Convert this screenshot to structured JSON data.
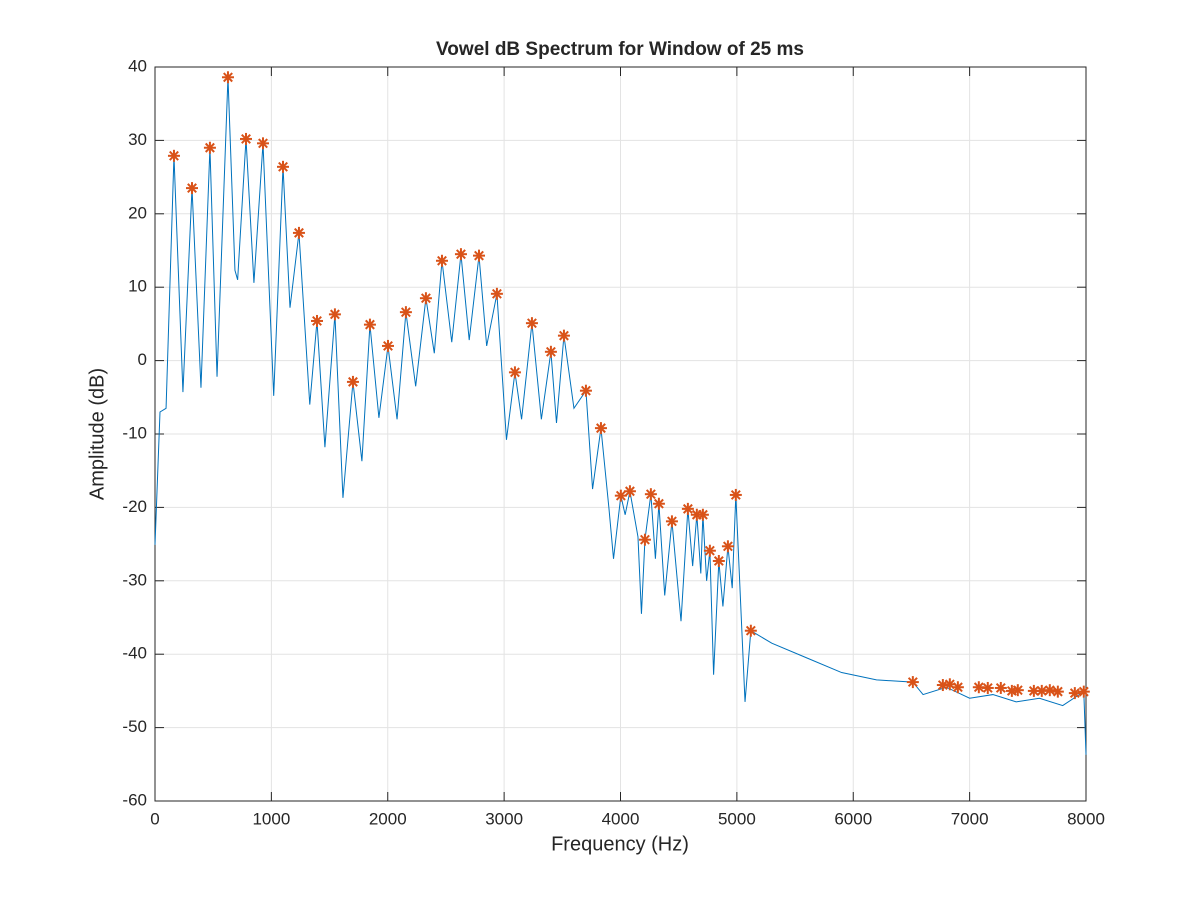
{
  "chart_data": {
    "type": "line",
    "title": "Vowel dB Spectrum for Window of 25 ms",
    "xlabel": "Frequency (Hz)",
    "ylabel": "Amplitude (dB)",
    "xlim": [
      0,
      8000
    ],
    "xticks": [
      0,
      1000,
      2000,
      3000,
      4000,
      5000,
      6000,
      7000,
      8000
    ],
    "ylim": [
      -60,
      40
    ],
    "yticks": [
      -60,
      -50,
      -40,
      -30,
      -20,
      -10,
      0,
      10,
      20,
      30,
      40
    ],
    "grid": true,
    "series": [
      {
        "type": "line",
        "color": "#0072bd",
        "x": [
          0,
          43,
          95,
          163,
          240,
          318,
          395,
          472,
          533,
          627,
          687,
          710,
          782,
          850,
          928,
          1020,
          1100,
          1160,
          1237,
          1330,
          1392,
          1460,
          1546,
          1615,
          1701,
          1778,
          1847,
          1924,
          2002,
          2080,
          2156,
          2240,
          2328,
          2400,
          2466,
          2550,
          2629,
          2700,
          2784,
          2850,
          2938,
          3020,
          3093,
          3150,
          3239,
          3320,
          3402,
          3450,
          3514,
          3600,
          3703,
          3760,
          3832,
          3900,
          3940,
          4003,
          4040,
          4081,
          4150,
          4180,
          4210,
          4261,
          4300,
          4330,
          4380,
          4442,
          4520,
          4579,
          4620,
          4656,
          4690,
          4708,
          4740,
          4768,
          4800,
          4845,
          4880,
          4923,
          4960,
          4991,
          5070,
          5120,
          5300,
          5600,
          5900,
          6200,
          6512,
          6600,
          6800,
          7000,
          7200,
          7400,
          7600,
          7800,
          7981,
          8000
        ],
        "values": [
          -25.1,
          -7,
          -6.5,
          27.9,
          -4.3,
          23.5,
          -3.7,
          29.0,
          -2.2,
          38.6,
          12.3,
          11,
          30.2,
          10.6,
          29.6,
          -4.8,
          26.4,
          7.2,
          17.4,
          -6,
          5.4,
          -11.8,
          6.3,
          -18.7,
          -2.9,
          -13.7,
          4.9,
          -7.8,
          2.0,
          -8,
          6.6,
          -3.5,
          8.5,
          1,
          13.6,
          2.5,
          14.5,
          2.8,
          14.3,
          2,
          9.1,
          -10.8,
          -1.6,
          -8,
          5.1,
          -8,
          1.2,
          -8.5,
          3.4,
          -6.5,
          -4.1,
          -17.5,
          -9.2,
          -20,
          -27,
          -18.4,
          -21,
          -17.8,
          -24,
          -34.5,
          -24.4,
          -18.2,
          -27,
          -19.5,
          -32,
          -21.9,
          -35.5,
          -20.2,
          -28,
          -21.0,
          -29,
          -21.0,
          -30,
          -25.9,
          -42.8,
          -27.3,
          -33.5,
          -25.3,
          -31,
          -18.3,
          -46.5,
          -36.8,
          -38.5,
          -40.5,
          -42.5,
          -43.5,
          -43.8,
          -45.5,
          -44.5,
          -46,
          -45.5,
          -46.5,
          -46,
          -47,
          -45.1,
          -53.7
        ]
      },
      {
        "type": "scatter",
        "color": "#d95319",
        "x": [
          163,
          318,
          472,
          627,
          782,
          928,
          1100,
          1237,
          1392,
          1546,
          1701,
          1847,
          2002,
          2156,
          2328,
          2466,
          2629,
          2784,
          2938,
          3093,
          3239,
          3402,
          3514,
          3703,
          3832,
          4003,
          4081,
          4210,
          4261,
          4330,
          4442,
          4579,
          4656,
          4708,
          4768,
          4845,
          4923,
          4991,
          5120,
          6512,
          6770,
          6830,
          6899,
          7079,
          7156,
          7268,
          7363,
          7414,
          7552,
          7620,
          7689,
          7758,
          7904,
          7981
        ],
        "values": [
          27.9,
          23.5,
          29.0,
          38.6,
          30.2,
          29.6,
          26.4,
          17.4,
          5.4,
          6.3,
          -2.9,
          4.9,
          2.0,
          6.6,
          8.5,
          13.6,
          14.5,
          14.3,
          9.1,
          -1.6,
          5.1,
          1.2,
          3.4,
          -4.1,
          -9.2,
          -18.4,
          -17.8,
          -24.4,
          -18.2,
          -19.5,
          -21.9,
          -20.2,
          -21.0,
          -21.0,
          -25.9,
          -27.3,
          -25.3,
          -18.3,
          -36.8,
          -43.8,
          -44.2,
          -44.1,
          -44.5,
          -44.5,
          -44.6,
          -44.6,
          -45.0,
          -44.9,
          -45.0,
          -45.0,
          -44.9,
          -45.1,
          -45.3,
          -45.1
        ]
      }
    ]
  }
}
